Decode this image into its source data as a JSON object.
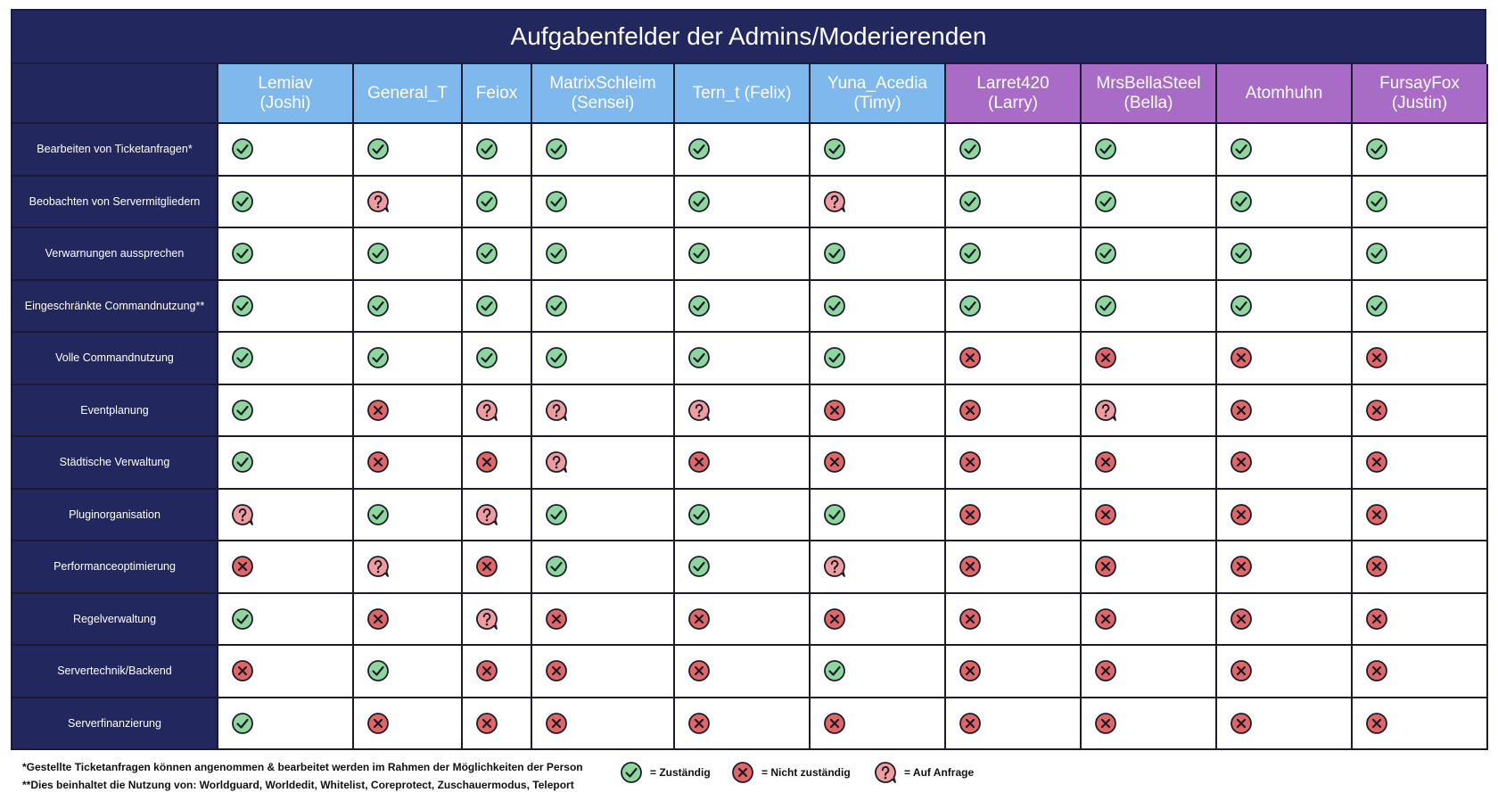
{
  "title": "Aufgabenfelder der Admins/Moderierenden",
  "colors": {
    "navy": "#22275e",
    "blue_header": "#7fb8ec",
    "purple_header": "#a86bc6",
    "yes": "#8ed79c",
    "no": "#e06767",
    "ask": "#ef9c9c"
  },
  "columns": [
    {
      "name": "Lemiav\n(Joshi)",
      "group": "blue"
    },
    {
      "name": "General_T",
      "group": "blue"
    },
    {
      "name": "Feiox",
      "group": "blue"
    },
    {
      "name": "MatrixSchleim\n(Sensei)",
      "group": "blue"
    },
    {
      "name": "Tern_t (Felix)",
      "group": "blue"
    },
    {
      "name": "Yuna_Acedia\n(Timy)",
      "group": "blue"
    },
    {
      "name": "Larret420\n(Larry)",
      "group": "purple"
    },
    {
      "name": "MrsBellaSteel\n(Bella)",
      "group": "purple"
    },
    {
      "name": "Atomhuhn",
      "group": "purple"
    },
    {
      "name": "FursayFox\n(Justin)",
      "group": "purple"
    }
  ],
  "rows": [
    {
      "label": "Bearbeiten von Ticketanfragen*",
      "marks": [
        "yes",
        "yes",
        "yes",
        "yes",
        "yes",
        "yes",
        "yes",
        "yes",
        "yes",
        "yes"
      ]
    },
    {
      "label": "Beobachten von Servermitgliedern",
      "marks": [
        "yes",
        "ask",
        "yes",
        "yes",
        "yes",
        "ask",
        "yes",
        "yes",
        "yes",
        "yes"
      ]
    },
    {
      "label": "Verwarnungen aussprechen",
      "marks": [
        "yes",
        "yes",
        "yes",
        "yes",
        "yes",
        "yes",
        "yes",
        "yes",
        "yes",
        "yes"
      ]
    },
    {
      "label": "Eingeschränkte Commandnutzung**",
      "marks": [
        "yes",
        "yes",
        "yes",
        "yes",
        "yes",
        "yes",
        "yes",
        "yes",
        "yes",
        "yes"
      ]
    },
    {
      "label": "Volle Commandnutzung",
      "marks": [
        "yes",
        "yes",
        "yes",
        "yes",
        "yes",
        "yes",
        "no",
        "no",
        "no",
        "no"
      ]
    },
    {
      "label": "Eventplanung",
      "marks": [
        "yes",
        "no",
        "ask",
        "ask",
        "ask",
        "no",
        "no",
        "ask",
        "no",
        "no"
      ]
    },
    {
      "label": "Städtische Verwaltung",
      "marks": [
        "yes",
        "no",
        "no",
        "ask",
        "no",
        "no",
        "no",
        "no",
        "no",
        "no"
      ]
    },
    {
      "label": "Pluginorganisation",
      "marks": [
        "ask",
        "yes",
        "ask",
        "yes",
        "yes",
        "yes",
        "no",
        "no",
        "no",
        "no"
      ]
    },
    {
      "label": "Performanceoptimierung",
      "marks": [
        "no",
        "ask",
        "no",
        "yes",
        "yes",
        "ask",
        "no",
        "no",
        "no",
        "no"
      ]
    },
    {
      "label": "Regelverwaltung",
      "marks": [
        "yes",
        "no",
        "ask",
        "no",
        "no",
        "no",
        "no",
        "no",
        "no",
        "no"
      ]
    },
    {
      "label": "Servertechnik/Backend",
      "marks": [
        "no",
        "yes",
        "no",
        "no",
        "no",
        "yes",
        "no",
        "no",
        "no",
        "no"
      ]
    },
    {
      "label": "Serverfinanzierung",
      "marks": [
        "yes",
        "no",
        "no",
        "no",
        "no",
        "no",
        "no",
        "no",
        "no",
        "no"
      ]
    }
  ],
  "footnotes": {
    "note1": "*Gestellte Ticketanfragen können angenommen & bearbeitet werden im Rahmen der Möglichkeiten der Person",
    "note2": "**Dies beinhaltet die Nutzung von: Worldguard, Worldedit, Whitelist, Coreprotect, Zuschauermodus, Teleport"
  },
  "legend": {
    "yes_label": "= Zuständig",
    "no_label": "= Nicht zuständig",
    "ask_label": "= Auf Anfrage"
  }
}
